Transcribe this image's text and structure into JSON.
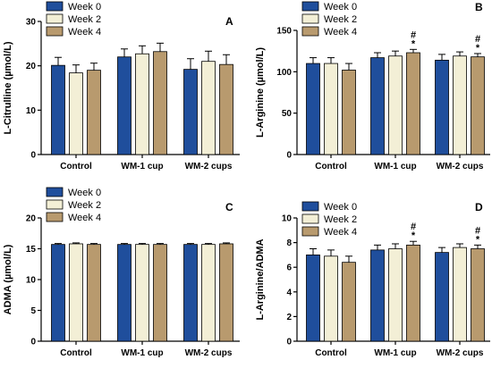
{
  "series_colors": [
    "#1f4e9c",
    "#f3efd6",
    "#b89a6e"
  ],
  "chart_data": [
    {
      "type": "bar",
      "panel_label": "A",
      "ylabel": "L-Citrulline (µmol/L)",
      "categories": [
        "Control",
        "WM-1 cup",
        "WM-2 cups"
      ],
      "ylim": [
        0,
        30
      ],
      "yticks": [
        0,
        10,
        20,
        30
      ],
      "yticks_text": [
        "0",
        "10",
        "20",
        "30"
      ],
      "legend_position": "top-left",
      "series": [
        {
          "name": "Week 0",
          "values": [
            20.1,
            22.0,
            19.2
          ],
          "errors": [
            1.8,
            1.8,
            2.4
          ]
        },
        {
          "name": "Week 2",
          "values": [
            18.4,
            22.7,
            21.0
          ],
          "errors": [
            1.8,
            1.8,
            2.3
          ]
        },
        {
          "name": "Week 4",
          "values": [
            19.0,
            23.2,
            20.3
          ],
          "errors": [
            1.6,
            1.9,
            2.2
          ]
        }
      ],
      "annotations": []
    },
    {
      "type": "bar",
      "panel_label": "B",
      "ylabel": "L-Arginine (µmol/L)",
      "categories": [
        "Control",
        "WM-1 cup",
        "WM-2 cups"
      ],
      "ylim": [
        0,
        150
      ],
      "yticks": [
        0,
        50,
        100,
        150
      ],
      "yticks_text": [
        "0",
        "50",
        "100",
        "150"
      ],
      "legend_position": "top-left",
      "series": [
        {
          "name": "Week 0",
          "values": [
            110,
            117,
            114
          ],
          "errors": [
            7,
            6,
            7
          ]
        },
        {
          "name": "Week 2",
          "values": [
            110,
            119,
            119
          ],
          "errors": [
            7,
            6,
            5
          ]
        },
        {
          "name": "Week 4",
          "values": [
            102,
            123,
            118
          ],
          "errors": [
            8,
            4,
            4
          ]
        }
      ],
      "annotations": [
        {
          "category": 1,
          "series": 2,
          "lines": [
            "#",
            "*"
          ]
        },
        {
          "category": 2,
          "series": 2,
          "lines": [
            "#",
            "*"
          ]
        }
      ]
    },
    {
      "type": "bar",
      "panel_label": "C",
      "ylabel": "ADMA (µmol/L)",
      "categories": [
        "Control",
        "WM-1 cup",
        "WM-2 cups"
      ],
      "ylim": [
        0,
        20
      ],
      "yticks": [
        0,
        5,
        10,
        15,
        20
      ],
      "yticks_text": [
        "0",
        "5",
        "10",
        "15",
        "20"
      ],
      "legend_position": "top-left",
      "series": [
        {
          "name": "Week 0",
          "values": [
            15.7,
            15.7,
            15.7
          ],
          "errors": [
            0.15,
            0.15,
            0.15
          ]
        },
        {
          "name": "Week 2",
          "values": [
            15.8,
            15.7,
            15.7
          ],
          "errors": [
            0.15,
            0.15,
            0.15
          ]
        },
        {
          "name": "Week 4",
          "values": [
            15.7,
            15.7,
            15.8
          ],
          "errors": [
            0.15,
            0.15,
            0.15
          ]
        }
      ],
      "annotations": []
    },
    {
      "type": "bar",
      "panel_label": "D",
      "ylabel": "L-Arginine/ADMA",
      "categories": [
        "Control",
        "WM-1 cup",
        "WM-2 cups"
      ],
      "ylim": [
        0,
        10
      ],
      "yticks": [
        0,
        2,
        4,
        6,
        8,
        10
      ],
      "yticks_text": [
        "0",
        "2",
        "4",
        "6",
        "8",
        "10"
      ],
      "legend_position": "top-left",
      "series": [
        {
          "name": "Week 0",
          "values": [
            7.0,
            7.4,
            7.2
          ],
          "errors": [
            0.5,
            0.4,
            0.4
          ]
        },
        {
          "name": "Week 2",
          "values": [
            6.9,
            7.5,
            7.6
          ],
          "errors": [
            0.5,
            0.4,
            0.3
          ]
        },
        {
          "name": "Week 4",
          "values": [
            6.4,
            7.8,
            7.5
          ],
          "errors": [
            0.5,
            0.3,
            0.3
          ]
        }
      ],
      "annotations": [
        {
          "category": 1,
          "series": 2,
          "lines": [
            "#",
            "*"
          ]
        },
        {
          "category": 2,
          "series": 2,
          "lines": [
            "#",
            "*"
          ]
        }
      ]
    }
  ]
}
